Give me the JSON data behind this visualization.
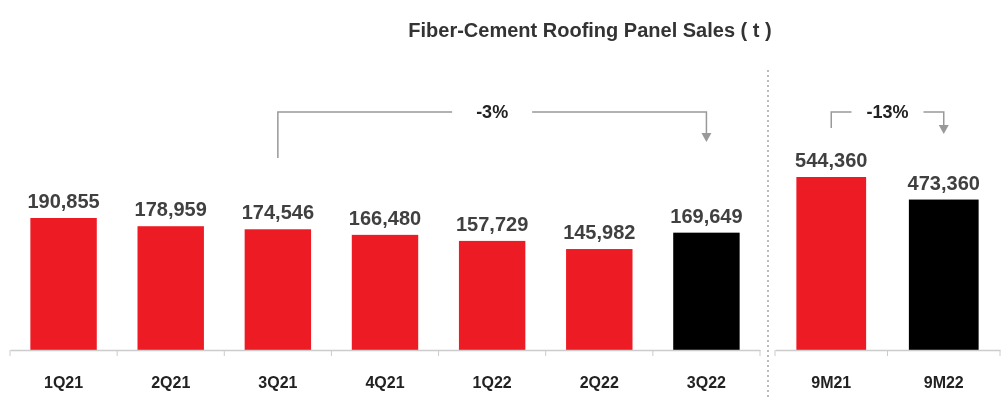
{
  "chart_data": [
    {
      "type": "bar",
      "title": "Fiber-Cement Roofing Panel Sales ( t )",
      "categories": [
        "1Q21",
        "2Q21",
        "3Q21",
        "4Q21",
        "1Q22",
        "2Q22",
        "3Q22"
      ],
      "values": [
        190855,
        178959,
        174546,
        166480,
        157729,
        145982,
        169649
      ],
      "colors": [
        "#ed1c24",
        "#ed1c24",
        "#ed1c24",
        "#ed1c24",
        "#ed1c24",
        "#ed1c24",
        "#000000"
      ],
      "tick_labels": "x",
      "value_labels": [
        "190,855",
        "178,959",
        "174,546",
        "166,480",
        "157,729",
        "145,982",
        "169,649"
      ],
      "annotations": [
        "-3%"
      ]
    },
    {
      "type": "bar",
      "categories": [
        "9M21",
        "9M22"
      ],
      "values": [
        544360,
        473360
      ],
      "colors": [
        "#ed1c24",
        "#000000"
      ],
      "tick_labels": "x",
      "value_labels": [
        "544,360",
        "473,360"
      ],
      "annotations": [
        "-13%"
      ]
    }
  ]
}
